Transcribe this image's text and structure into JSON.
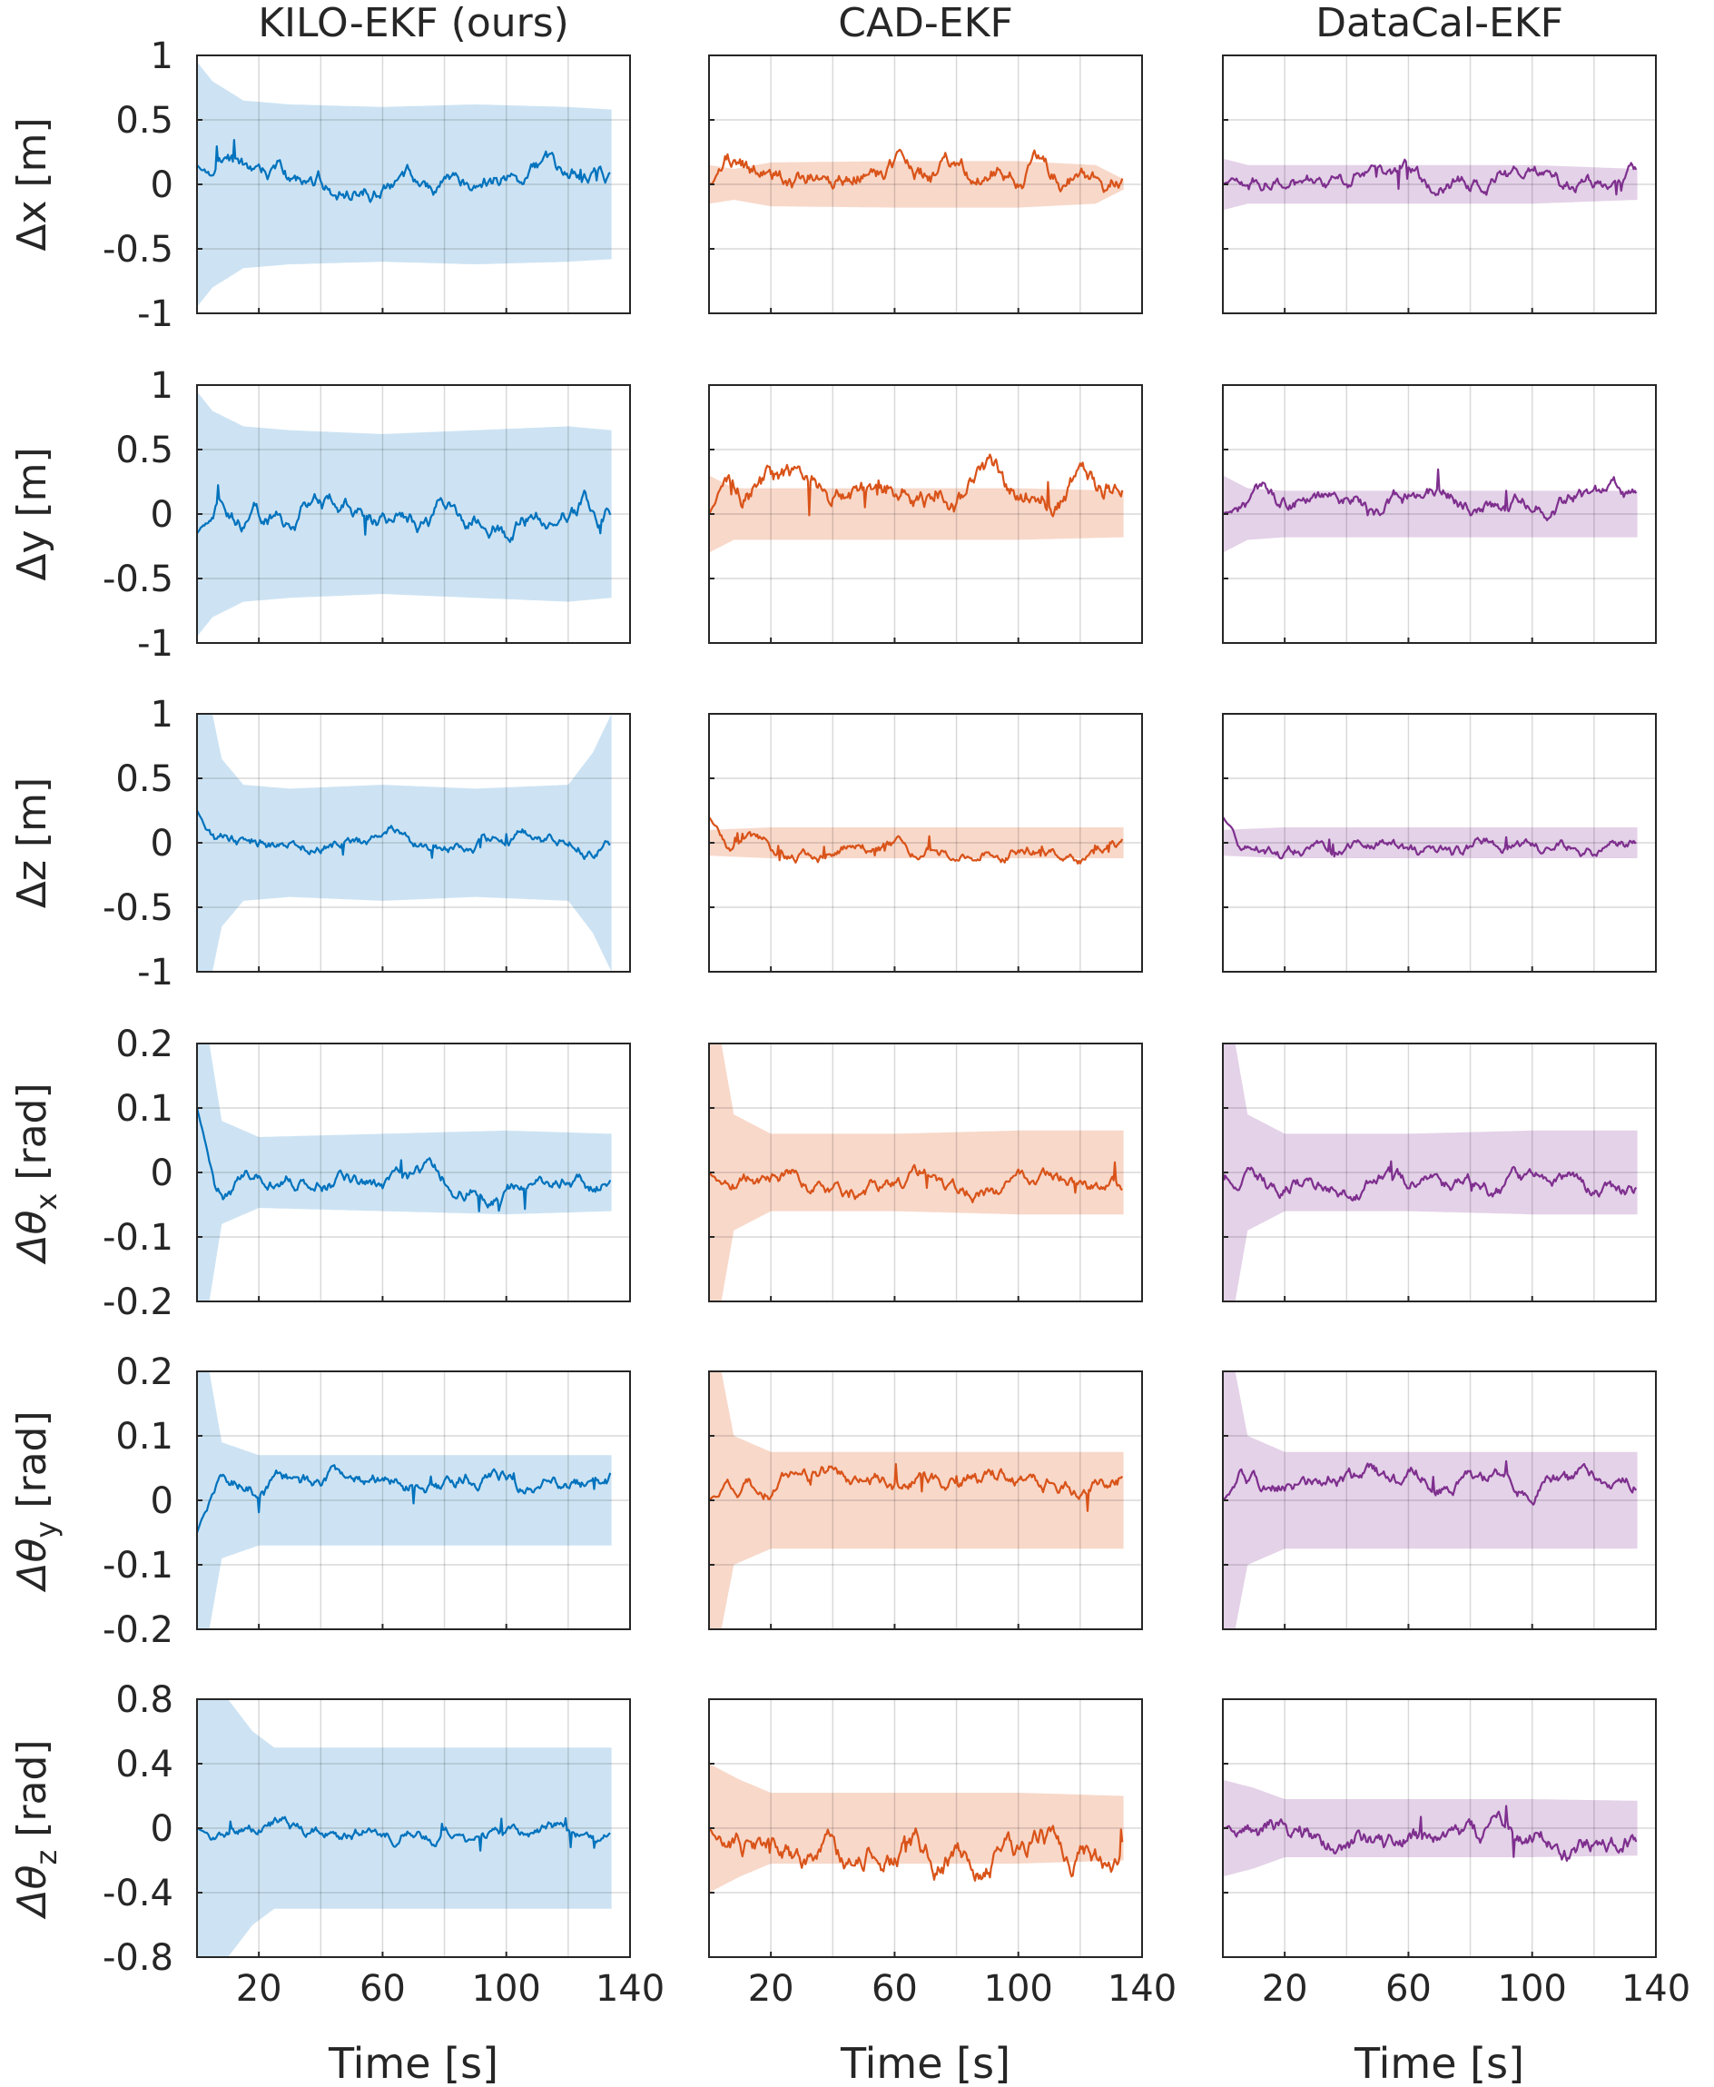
{
  "chart_data": {
    "type": "line",
    "layout": "6x3 grid of line plots with shaded uncertainty bands",
    "column_titles": [
      "KILO-EKF (ours)",
      "CAD-EKF",
      "DataCal-EKF"
    ],
    "series_colors": [
      "#0072BD",
      "#D95319",
      "#7E2F8E"
    ],
    "band_colors": [
      "#CDE3F3",
      "#F8D8C9",
      "#E4D2E8"
    ],
    "xlabel": "Time [s]",
    "xlim": [
      0,
      140
    ],
    "xticks": [
      20,
      60,
      100,
      140
    ],
    "x_gridlines": [
      0,
      20,
      40,
      60,
      80,
      100,
      120,
      140
    ],
    "time_end": 134,
    "grid": true,
    "rows": [
      {
        "ylabel_main": "Δx [m]",
        "ylabel_sub": "",
        "ylim": [
          -1,
          1
        ],
        "yticks": [
          1,
          0.5,
          0,
          -0.5,
          -1
        ],
        "ytick_labels": [
          "1",
          "0.5",
          "0",
          "-0.5",
          "-1"
        ],
        "ygrid": [
          1,
          0.5,
          0,
          -0.5,
          -1
        ],
        "panels": [
          {
            "band": [
              [
                0,
                0.95
              ],
              [
                5,
                0.8
              ],
              [
                15,
                0.65
              ],
              [
                30,
                0.62
              ],
              [
                60,
                0.6
              ],
              [
                90,
                0.62
              ],
              [
                120,
                0.6
              ],
              [
                134,
                0.58
              ]
            ],
            "mean": 0.02,
            "amp": 0.09,
            "start": 0.15,
            "seed": 11
          },
          {
            "band": [
              [
                0,
                0.15
              ],
              [
                8,
                0.12
              ],
              [
                20,
                0.17
              ],
              [
                60,
                0.18
              ],
              [
                100,
                0.18
              ],
              [
                125,
                0.15
              ],
              [
                134,
                0.04
              ]
            ],
            "mean": 0.1,
            "amp": 0.1,
            "start": 0.0,
            "seed": 12
          },
          {
            "band": [
              [
                0,
                0.2
              ],
              [
                8,
                0.15
              ],
              [
                20,
                0.15
              ],
              [
                60,
                0.15
              ],
              [
                100,
                0.15
              ],
              [
                134,
                0.12
              ]
            ],
            "mean": 0.05,
            "amp": 0.08,
            "start": 0.0,
            "seed": 13
          }
        ]
      },
      {
        "ylabel_main": "Δy [m]",
        "ylabel_sub": "",
        "ylim": [
          -1,
          1
        ],
        "yticks": [
          1,
          0.5,
          0,
          -0.5,
          -1
        ],
        "ytick_labels": [
          "1",
          "0.5",
          "0",
          "-0.5",
          "-1"
        ],
        "ygrid": [
          1,
          0.5,
          0,
          -0.5,
          -1
        ],
        "panels": [
          {
            "band": [
              [
                0,
                0.95
              ],
              [
                5,
                0.8
              ],
              [
                15,
                0.68
              ],
              [
                30,
                0.65
              ],
              [
                60,
                0.62
              ],
              [
                90,
                0.65
              ],
              [
                120,
                0.68
              ],
              [
                134,
                0.65
              ]
            ],
            "mean": 0.0,
            "amp": 0.1,
            "start": -0.15,
            "seed": 21
          },
          {
            "band": [
              [
                0,
                0.3
              ],
              [
                8,
                0.2
              ],
              [
                20,
                0.2
              ],
              [
                60,
                0.2
              ],
              [
                100,
                0.2
              ],
              [
                134,
                0.18
              ]
            ],
            "mean": 0.2,
            "amp": 0.12,
            "start": 0.0,
            "seed": 22
          },
          {
            "band": [
              [
                0,
                0.3
              ],
              [
                8,
                0.2
              ],
              [
                20,
                0.18
              ],
              [
                60,
                0.18
              ],
              [
                100,
                0.18
              ],
              [
                134,
                0.18
              ]
            ],
            "mean": 0.1,
            "amp": 0.08,
            "start": 0.0,
            "seed": 23
          }
        ]
      },
      {
        "ylabel_main": "Δz [m]",
        "ylabel_sub": "",
        "ylim": [
          -1,
          1
        ],
        "yticks": [
          1,
          0.5,
          0,
          -0.5,
          -1
        ],
        "ytick_labels": [
          "1",
          "0.5",
          "0",
          "-0.5",
          "-1"
        ],
        "ygrid": [
          1,
          0.5,
          0,
          -0.5,
          -1
        ],
        "panels": [
          {
            "band": [
              [
                0,
                1.0
              ],
              [
                5,
                1.0
              ],
              [
                8,
                0.65
              ],
              [
                15,
                0.45
              ],
              [
                30,
                0.42
              ],
              [
                60,
                0.45
              ],
              [
                90,
                0.42
              ],
              [
                120,
                0.45
              ],
              [
                128,
                0.7
              ],
              [
                134,
                1.0
              ]
            ],
            "mean": 0.0,
            "amp": 0.06,
            "start": 0.25,
            "seed": 31
          },
          {
            "band": [
              [
                0,
                0.1
              ],
              [
                20,
                0.12
              ],
              [
                60,
                0.12
              ],
              [
                100,
                0.12
              ],
              [
                134,
                0.12
              ]
            ],
            "mean": -0.05,
            "amp": 0.06,
            "start": 0.2,
            "seed": 32
          },
          {
            "band": [
              [
                0,
                0.1
              ],
              [
                20,
                0.12
              ],
              [
                60,
                0.12
              ],
              [
                100,
                0.12
              ],
              [
                134,
                0.12
              ]
            ],
            "mean": -0.05,
            "amp": 0.06,
            "start": 0.2,
            "seed": 33
          }
        ]
      },
      {
        "ylabel_main": "Δθ",
        "ylabel_sub": "x",
        "ylim": [
          -0.2,
          0.2
        ],
        "yticks": [
          0.2,
          0.1,
          0,
          -0.1,
          -0.2
        ],
        "ytick_labels": [
          "0.2",
          "0.1",
          "0",
          "-0.1",
          "-0.2"
        ],
        "ygrid": [
          0.2,
          0.1,
          0,
          -0.1,
          -0.2
        ],
        "panels": [
          {
            "band": [
              [
                0,
                0.2
              ],
              [
                4,
                0.2
              ],
              [
                8,
                0.08
              ],
              [
                20,
                0.055
              ],
              [
                60,
                0.06
              ],
              [
                100,
                0.065
              ],
              [
                134,
                0.06
              ]
            ],
            "mean": -0.02,
            "amp": 0.015,
            "start": 0.1,
            "seed": 41
          },
          {
            "band": [
              [
                0,
                0.2
              ],
              [
                4,
                0.2
              ],
              [
                8,
                0.09
              ],
              [
                20,
                0.06
              ],
              [
                60,
                0.06
              ],
              [
                100,
                0.065
              ],
              [
                134,
                0.065
              ]
            ],
            "mean": -0.02,
            "amp": 0.015,
            "start": 0.0,
            "seed": 42
          },
          {
            "band": [
              [
                0,
                0.2
              ],
              [
                4,
                0.2
              ],
              [
                8,
                0.09
              ],
              [
                20,
                0.06
              ],
              [
                60,
                0.06
              ],
              [
                100,
                0.065
              ],
              [
                134,
                0.065
              ]
            ],
            "mean": -0.02,
            "amp": 0.015,
            "start": 0.0,
            "seed": 43
          }
        ]
      },
      {
        "ylabel_main": "Δθ",
        "ylabel_sub": "y",
        "ylim": [
          -0.2,
          0.2
        ],
        "yticks": [
          0.2,
          0.1,
          0,
          -0.1,
          -0.2
        ],
        "ytick_labels": [
          "0.2",
          "0.1",
          "0",
          "-0.1",
          "-0.2"
        ],
        "ygrid": [
          0.2,
          0.1,
          0,
          -0.1,
          -0.2
        ],
        "panels": [
          {
            "band": [
              [
                0,
                0.2
              ],
              [
                4,
                0.2
              ],
              [
                8,
                0.09
              ],
              [
                20,
                0.07
              ],
              [
                60,
                0.07
              ],
              [
                100,
                0.07
              ],
              [
                134,
                0.07
              ]
            ],
            "mean": 0.03,
            "amp": 0.015,
            "start": -0.05,
            "seed": 51
          },
          {
            "band": [
              [
                0,
                0.2
              ],
              [
                4,
                0.2
              ],
              [
                8,
                0.1
              ],
              [
                20,
                0.075
              ],
              [
                60,
                0.075
              ],
              [
                100,
                0.075
              ],
              [
                134,
                0.075
              ]
            ],
            "mean": 0.03,
            "amp": 0.015,
            "start": 0.0,
            "seed": 52
          },
          {
            "band": [
              [
                0,
                0.2
              ],
              [
                4,
                0.2
              ],
              [
                8,
                0.1
              ],
              [
                20,
                0.075
              ],
              [
                60,
                0.075
              ],
              [
                100,
                0.075
              ],
              [
                134,
                0.075
              ]
            ],
            "mean": 0.03,
            "amp": 0.015,
            "start": 0.0,
            "seed": 53
          }
        ]
      },
      {
        "ylabel_main": "Δθ",
        "ylabel_sub": "z",
        "ylim": [
          -0.8,
          0.8
        ],
        "yticks": [
          0.8,
          0.4,
          0,
          -0.4,
          -0.8
        ],
        "ytick_labels": [
          "0.8",
          "0.4",
          "0",
          "-0.4",
          "-0.8"
        ],
        "ygrid": [
          0.8,
          0.4,
          0,
          -0.4,
          -0.8
        ],
        "panels": [
          {
            "band": [
              [
                0,
                0.85
              ],
              [
                10,
                0.8
              ],
              [
                18,
                0.6
              ],
              [
                25,
                0.5
              ],
              [
                60,
                0.5
              ],
              [
                100,
                0.5
              ],
              [
                134,
                0.5
              ]
            ],
            "mean": -0.02,
            "amp": 0.05,
            "start": 0.0,
            "seed": 61
          },
          {
            "band": [
              [
                0,
                0.4
              ],
              [
                10,
                0.3
              ],
              [
                20,
                0.22
              ],
              [
                60,
                0.22
              ],
              [
                100,
                0.22
              ],
              [
                134,
                0.2
              ]
            ],
            "mean": -0.15,
            "amp": 0.1,
            "start": 0.0,
            "seed": 62
          },
          {
            "band": [
              [
                0,
                0.3
              ],
              [
                10,
                0.25
              ],
              [
                20,
                0.18
              ],
              [
                60,
                0.18
              ],
              [
                100,
                0.18
              ],
              [
                134,
                0.17
              ]
            ],
            "mean": -0.08,
            "amp": 0.08,
            "start": 0.0,
            "seed": 63
          }
        ]
      }
    ]
  }
}
